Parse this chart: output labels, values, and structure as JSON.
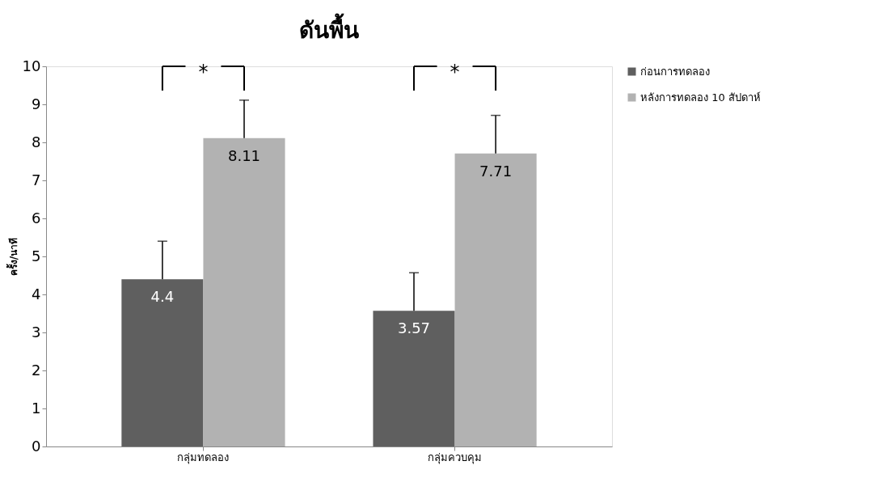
{
  "chart_data": {
    "type": "bar",
    "title": "ดันพื้น",
    "ylabel": "ครั้ง/นาที",
    "categories": [
      "กลุ่มทดลอง",
      "กลุ่มควบคุม"
    ],
    "series": [
      {
        "name": "ก่อนการทดลอง",
        "color": "#5f5f5f",
        "values": [
          4.4,
          3.57
        ],
        "errors": [
          [
            4.4,
            5.4
          ],
          [
            3.57,
            4.57
          ]
        ]
      },
      {
        "name": "หลังการทดลอง 10 สัปดาห์",
        "color": "#b2b2b2",
        "values": [
          8.11,
          7.71
        ],
        "errors": [
          [
            8.11,
            9.11
          ],
          [
            7.71,
            8.71
          ]
        ]
      }
    ],
    "ylim": [
      0,
      10
    ],
    "yticks": [
      0,
      1,
      2,
      3,
      4,
      5,
      6,
      7,
      8,
      9,
      10
    ],
    "data_labels": true,
    "grid": false,
    "legend": "right",
    "annotations": [
      "*",
      "*"
    ]
  }
}
